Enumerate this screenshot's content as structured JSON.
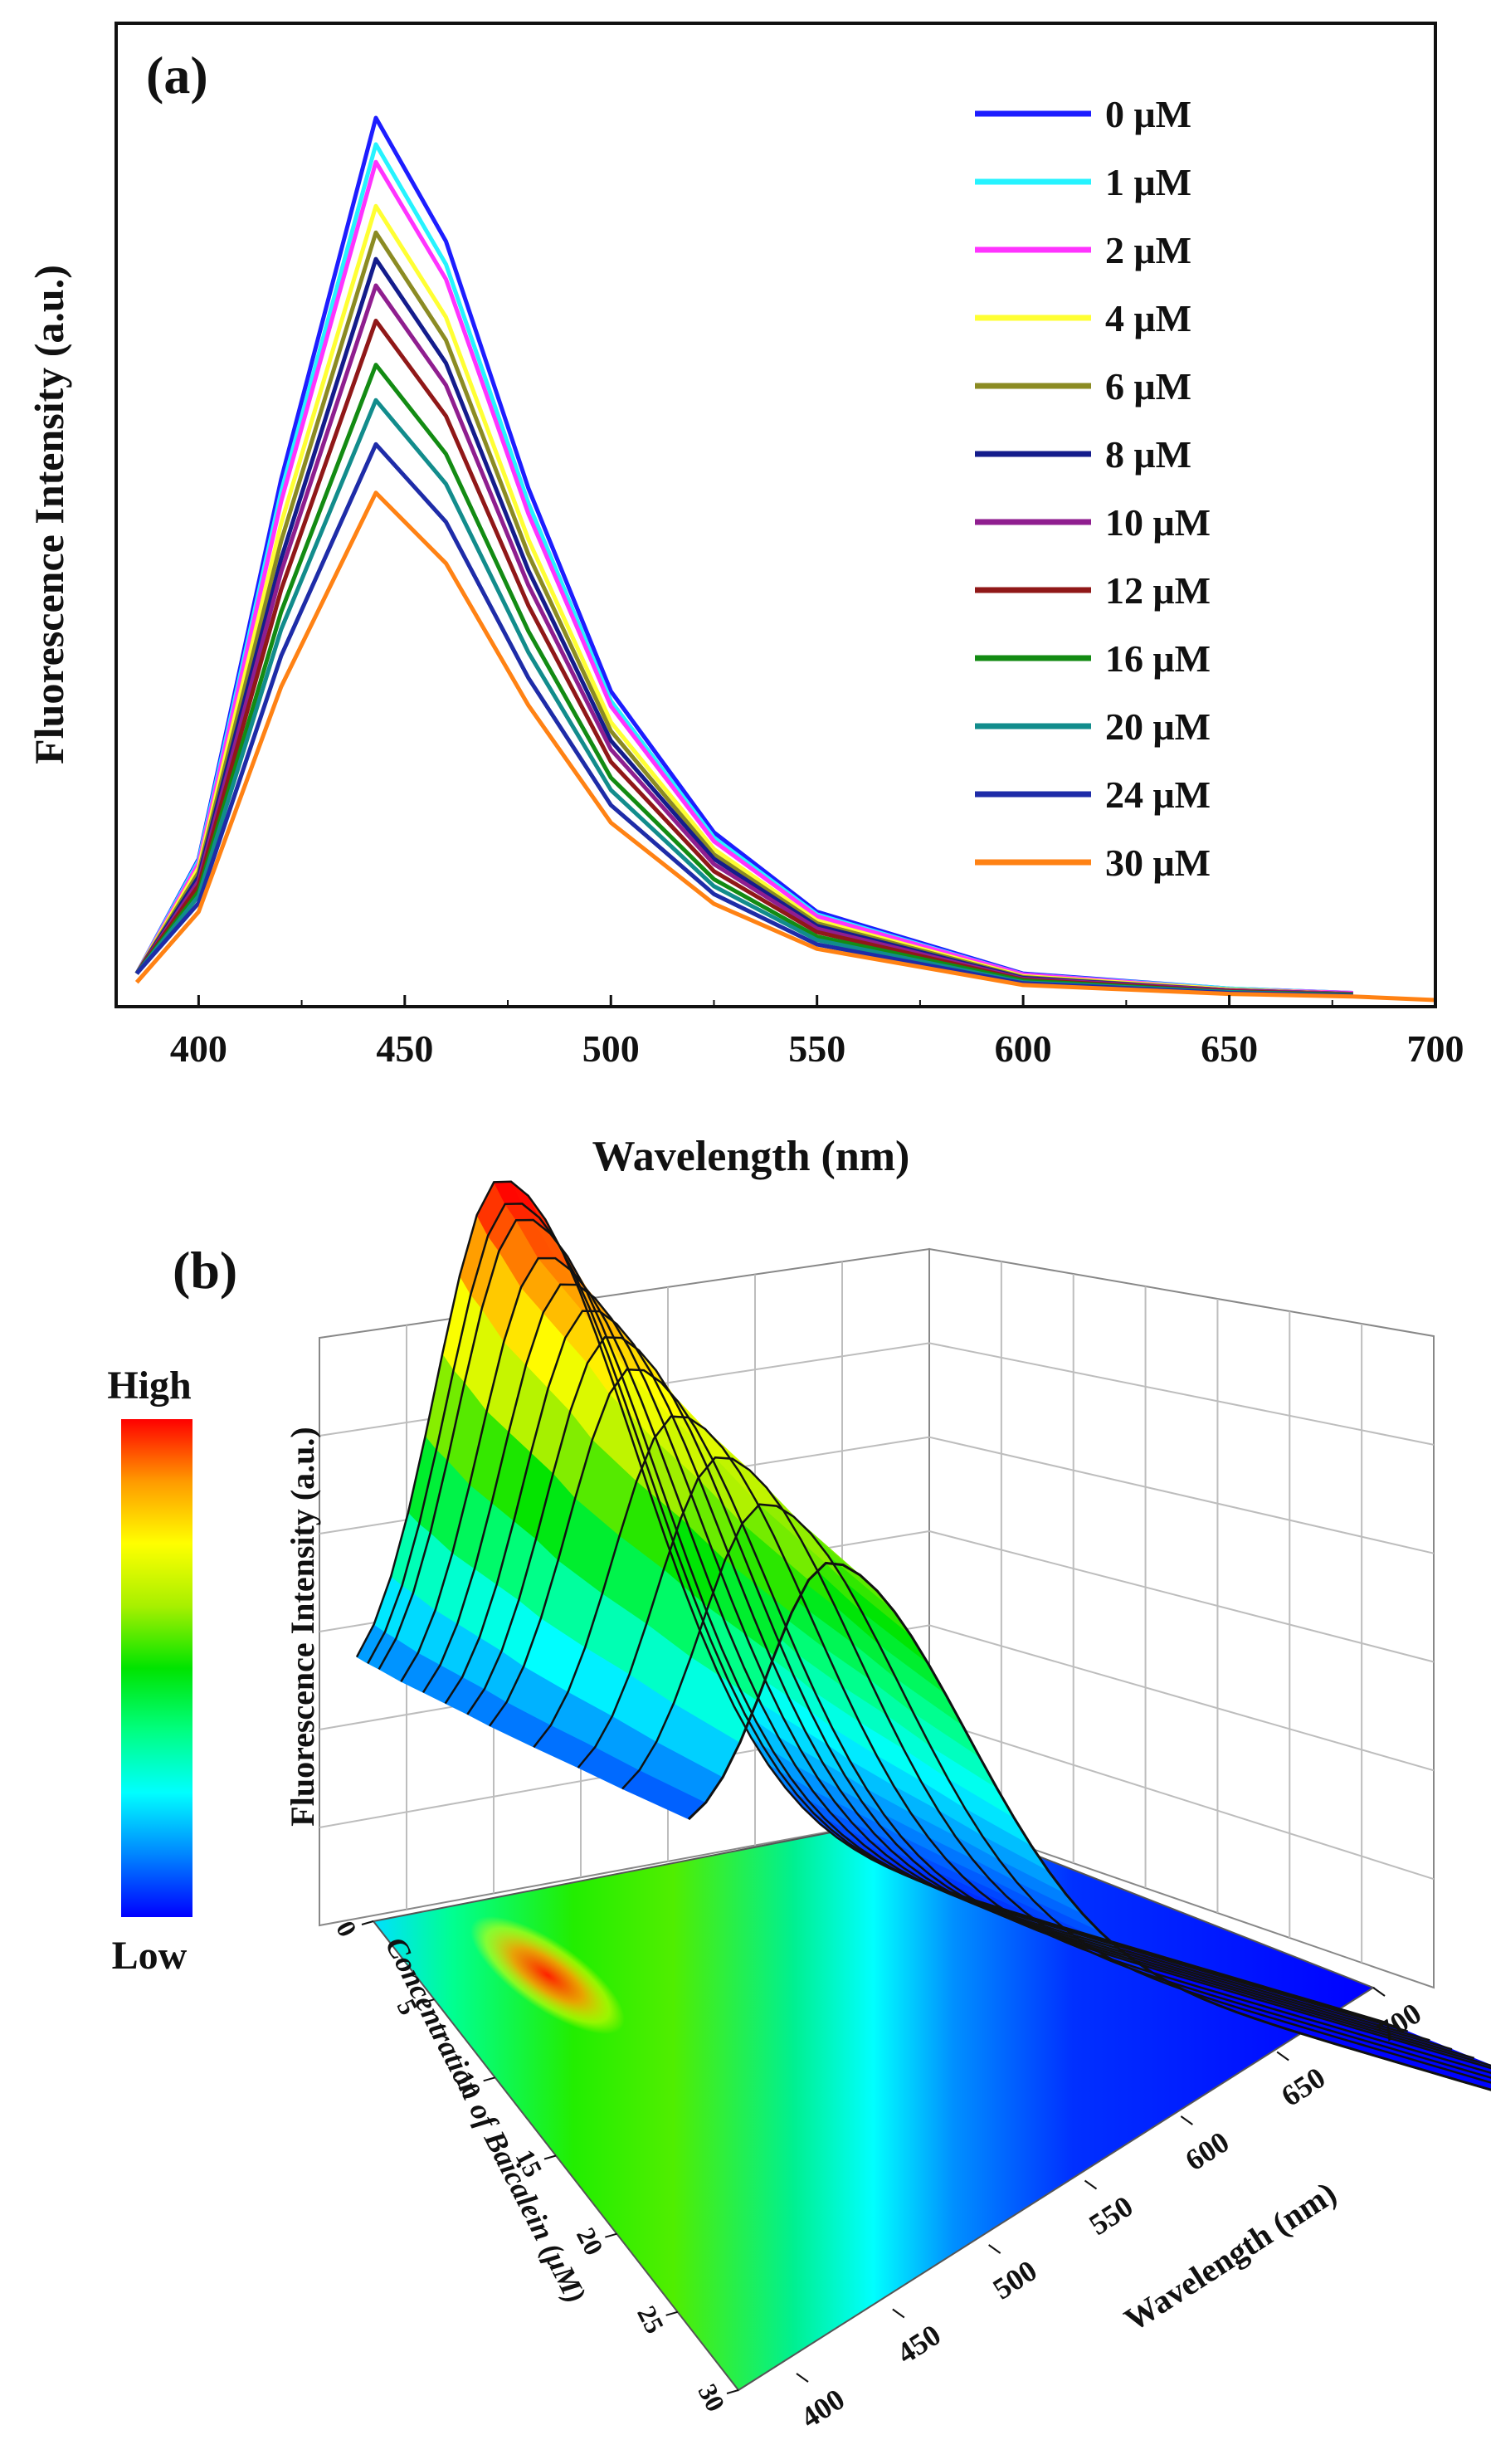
{
  "figure": {
    "panel_a": {
      "label": "(a)",
      "xlabel": "Wavelength (nm)",
      "ylabel": "Fluorescence Intensity (a.u.)",
      "xticks": [
        "400",
        "450",
        "500",
        "550",
        "600",
        "650",
        "700"
      ]
    },
    "panel_b": {
      "label": "(b)",
      "zlabel": "Fluorescence Intensity (a.u.)",
      "wavelength_label": "Wavelength (nm)",
      "concentration_label": "Concentration of Baicalein (μM)",
      "wavelength_ticks": [
        "400",
        "450",
        "500",
        "550",
        "600",
        "650",
        "700"
      ],
      "concentration_ticks": [
        "0",
        "5",
        "10",
        "15",
        "20",
        "25",
        "30"
      ],
      "colorbar_high": "High",
      "colorbar_low": "Low"
    }
  },
  "colors": {
    "series": [
      "#1d1dff",
      "#26f3ff",
      "#ff33ff",
      "#ffff33",
      "#8b8b23",
      "#141c8c",
      "#8f1e8f",
      "#901818",
      "#138b13",
      "#128c8c",
      "#1e2ca8",
      "#ff8214"
    ],
    "colormap": [
      "#0000ff",
      "#0085ff",
      "#00ffff",
      "#00ff80",
      "#00e400",
      "#a8f000",
      "#ffff00",
      "#ff9a00",
      "#ff0000"
    ]
  },
  "chart_data": [
    {
      "type": "line",
      "title": "",
      "xlabel": "Wavelength (nm)",
      "ylabel": "Fluorescence Intensity (a.u.)",
      "xlim": [
        380,
        700
      ],
      "ylim": [
        0,
        1
      ],
      "legend_position": "top-right",
      "peak_wavelength": 443,
      "series": [
        {
          "name": "0 μM",
          "x": [
            385,
            400,
            420,
            443,
            460,
            480,
            500,
            525,
            550,
            600,
            650,
            680
          ],
          "values": [
            0.03,
            0.16,
            0.59,
            1.0,
            0.86,
            0.58,
            0.35,
            0.19,
            0.1,
            0.03,
            0.013,
            0.008
          ]
        },
        {
          "name": "1 μM",
          "x": [
            385,
            400,
            420,
            443,
            460,
            480,
            500,
            525,
            550,
            600,
            650,
            680
          ],
          "values": [
            0.03,
            0.158,
            0.576,
            0.97,
            0.834,
            0.563,
            0.339,
            0.184,
            0.097,
            0.029,
            0.013,
            0.008
          ]
        },
        {
          "name": "2 μM",
          "x": [
            385,
            400,
            420,
            443,
            460,
            480,
            500,
            525,
            550,
            600,
            650,
            680
          ],
          "values": [
            0.03,
            0.155,
            0.565,
            0.95,
            0.817,
            0.551,
            0.333,
            0.18,
            0.095,
            0.029,
            0.012,
            0.008
          ]
        },
        {
          "name": "4 μM",
          "x": [
            385,
            400,
            420,
            443,
            460,
            480,
            500,
            525,
            550,
            600,
            650,
            680
          ],
          "values": [
            0.03,
            0.15,
            0.54,
            0.9,
            0.774,
            0.522,
            0.315,
            0.171,
            0.09,
            0.027,
            0.012,
            0.007
          ]
        },
        {
          "name": "6 μM",
          "x": [
            385,
            400,
            420,
            443,
            460,
            480,
            500,
            525,
            550,
            600,
            650,
            680
          ],
          "values": [
            0.03,
            0.145,
            0.52,
            0.87,
            0.748,
            0.505,
            0.305,
            0.165,
            0.087,
            0.026,
            0.011,
            0.007
          ]
        },
        {
          "name": "8 μM",
          "x": [
            385,
            400,
            420,
            443,
            460,
            480,
            500,
            525,
            550,
            600,
            650,
            680
          ],
          "values": [
            0.03,
            0.14,
            0.5,
            0.84,
            0.722,
            0.487,
            0.294,
            0.16,
            0.084,
            0.025,
            0.011,
            0.007
          ]
        },
        {
          "name": "10 μM",
          "x": [
            385,
            400,
            420,
            443,
            460,
            480,
            500,
            525,
            550,
            600,
            650,
            680
          ],
          "values": [
            0.03,
            0.135,
            0.485,
            0.81,
            0.697,
            0.47,
            0.284,
            0.154,
            0.081,
            0.024,
            0.011,
            0.007
          ]
        },
        {
          "name": "12 μM",
          "x": [
            385,
            400,
            420,
            443,
            460,
            480,
            500,
            525,
            550,
            600,
            650,
            680
          ],
          "values": [
            0.03,
            0.13,
            0.465,
            0.77,
            0.662,
            0.447,
            0.27,
            0.146,
            0.077,
            0.023,
            0.01,
            0.006
          ]
        },
        {
          "name": "16 μM",
          "x": [
            385,
            400,
            420,
            443,
            460,
            480,
            500,
            525,
            550,
            600,
            650,
            680
          ],
          "values": [
            0.03,
            0.123,
            0.44,
            0.72,
            0.619,
            0.418,
            0.252,
            0.137,
            0.072,
            0.022,
            0.009,
            0.006
          ]
        },
        {
          "name": "20 μM",
          "x": [
            385,
            400,
            420,
            443,
            460,
            480,
            500,
            525,
            550,
            600,
            650,
            680
          ],
          "values": [
            0.03,
            0.118,
            0.42,
            0.68,
            0.585,
            0.394,
            0.238,
            0.129,
            0.068,
            0.02,
            0.009,
            0.005
          ]
        },
        {
          "name": "24 μM",
          "x": [
            385,
            400,
            420,
            443,
            460,
            480,
            500,
            525,
            550,
            600,
            650,
            680
          ],
          "values": [
            0.03,
            0.11,
            0.39,
            0.63,
            0.542,
            0.365,
            0.221,
            0.12,
            0.063,
            0.019,
            0.008,
            0.005
          ]
        },
        {
          "name": "30 μM",
          "x": [
            385,
            400,
            420,
            443,
            460,
            480,
            500,
            525,
            550,
            600,
            650,
            680,
            700
          ],
          "values": [
            0.02,
            0.1,
            0.355,
            0.575,
            0.495,
            0.334,
            0.201,
            0.109,
            0.058,
            0.017,
            0.007,
            0.004,
            0.0
          ]
        }
      ]
    },
    {
      "type": "surface",
      "title": "",
      "wavelength_label": "Wavelength (nm)",
      "concentration_label": "Concentration of Baicalein (μM)",
      "zlabel": "Fluorescence Intensity (a.u.)",
      "wavelength_range": [
        400,
        700
      ],
      "concentration_range": [
        0,
        30
      ],
      "concentrations": [
        0,
        1,
        2,
        4,
        6,
        8,
        10,
        12,
        16,
        20,
        24,
        30
      ],
      "peak_wavelength": 443,
      "relative_peak_intensity": [
        1.0,
        0.97,
        0.95,
        0.9,
        0.87,
        0.84,
        0.81,
        0.77,
        0.72,
        0.68,
        0.63,
        0.575
      ],
      "projection": "filled contour on floor",
      "colorbar": [
        "High",
        "Low"
      ]
    }
  ]
}
